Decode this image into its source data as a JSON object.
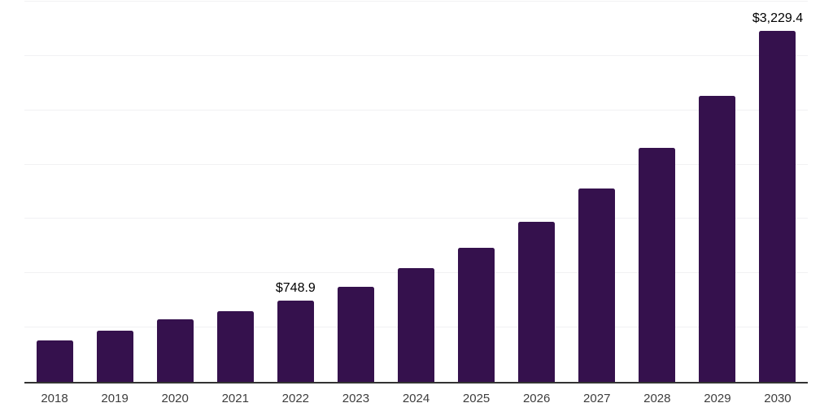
{
  "chart_data": {
    "type": "bar",
    "title": "",
    "xlabel": "",
    "ylabel": "",
    "categories": [
      "2018",
      "2019",
      "2020",
      "2021",
      "2022",
      "2023",
      "2024",
      "2025",
      "2026",
      "2027",
      "2028",
      "2029",
      "2030"
    ],
    "values": [
      380,
      470,
      575,
      650,
      748.9,
      874,
      1046,
      1233,
      1472,
      1778,
      2155,
      2629,
      3229.4
    ],
    "data_labels": [
      "",
      "",
      "",
      "",
      "$748.9",
      "",
      "",
      "",
      "",
      "",
      "",
      "",
      "$3,229.4"
    ],
    "ylim": [
      0,
      3500
    ],
    "gridline_step": 500,
    "grid": "horizontal",
    "legend": "none"
  },
  "colors": {
    "bar": "#35114D",
    "gridline": "#F1F1F3",
    "axis_line": "#333333",
    "tick_text": "#3D3D3D",
    "data_label_text": "#000000",
    "background": "#FFFFFF"
  }
}
